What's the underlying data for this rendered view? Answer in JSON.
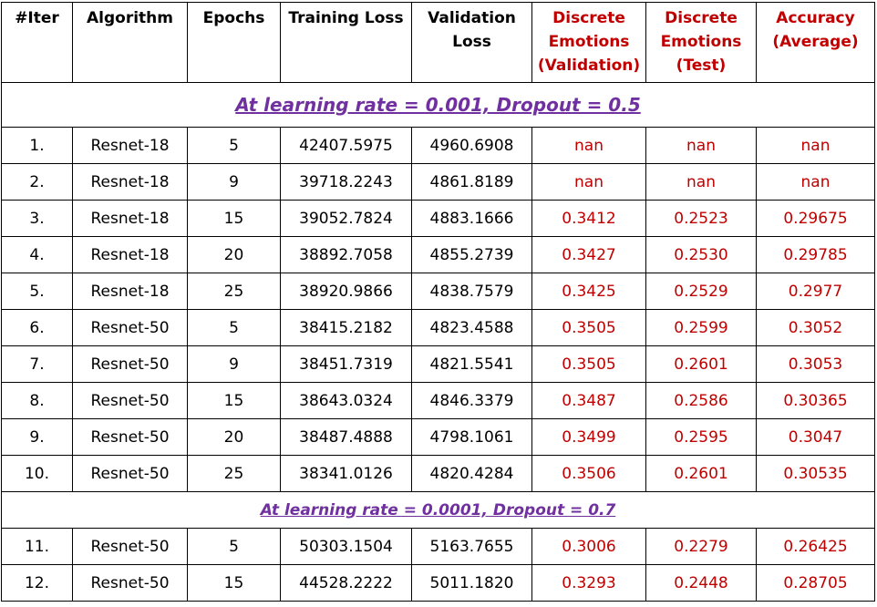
{
  "headers": [
    {
      "label": "#Iter",
      "accent": false
    },
    {
      "label": "Algorithm",
      "accent": false
    },
    {
      "label": "Epochs",
      "accent": false
    },
    {
      "label": "Training Loss",
      "accent": false
    },
    {
      "label": "Validation Loss",
      "accent": false
    },
    {
      "label": "Discrete Emotions (Validation)",
      "accent": true
    },
    {
      "label": "Discrete Emotions (Test)",
      "accent": true
    },
    {
      "label": "Accuracy (Average)",
      "accent": true
    }
  ],
  "colors": {
    "accent": "#c00000",
    "section": "#7030a0"
  },
  "sections": [
    {
      "title": "At learning rate = 0.001, Dropout = 0.5",
      "rows": [
        [
          "1.",
          "Resnet-18",
          "5",
          "42407.5975",
          "4960.6908",
          "nan",
          "nan",
          "nan"
        ],
        [
          "2.",
          "Resnet-18",
          "9",
          "39718.2243",
          "4861.8189",
          "nan",
          "nan",
          "nan"
        ],
        [
          "3.",
          "Resnet-18",
          "15",
          "39052.7824",
          "4883.1666",
          "0.3412",
          "0.2523",
          "0.29675"
        ],
        [
          "4.",
          "Resnet-18",
          "20",
          "38892.7058",
          "4855.2739",
          "0.3427",
          "0.2530",
          "0.29785"
        ],
        [
          "5.",
          "Resnet-18",
          "25",
          "38920.9866",
          "4838.7579",
          "0.3425",
          "0.2529",
          "0.2977"
        ],
        [
          "6.",
          "Resnet-50",
          "5",
          "38415.2182",
          "4823.4588",
          "0.3505",
          "0.2599",
          "0.3052"
        ],
        [
          "7.",
          "Resnet-50",
          "9",
          "38451.7319",
          "4821.5541",
          "0.3505",
          "0.2601",
          "0.3053"
        ],
        [
          "8.",
          "Resnet-50",
          "15",
          "38643.0324",
          "4846.3379",
          "0.3487",
          "0.2586",
          "0.30365"
        ],
        [
          "9.",
          "Resnet-50",
          "20",
          "38487.4888",
          "4798.1061",
          "0.3499",
          "0.2595",
          "0.3047"
        ],
        [
          "10.",
          "Resnet-50",
          "25",
          "38341.0126",
          "4820.4284",
          "0.3506",
          "0.2601",
          "0.30535"
        ]
      ]
    },
    {
      "title": "At learning rate = 0.0001, Dropout = 0.7",
      "rows": [
        [
          "11.",
          "Resnet-50",
          "5",
          "50303.1504",
          "5163.7655",
          "0.3006",
          "0.2279",
          "0.26425"
        ],
        [
          "12.",
          "Resnet-50",
          "15",
          "44528.2222",
          "5011.1820",
          "0.3293",
          "0.2448",
          "0.28705"
        ]
      ]
    }
  ]
}
